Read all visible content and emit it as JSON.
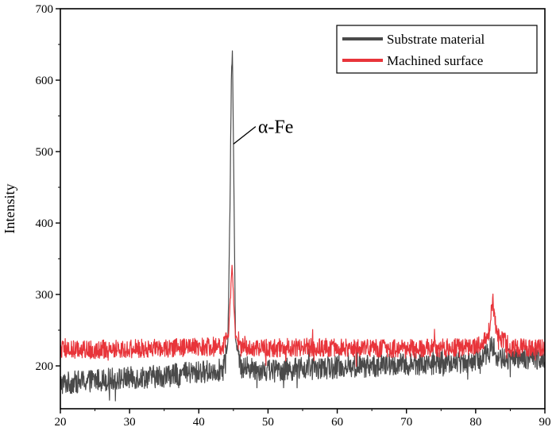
{
  "chart_data": {
    "type": "line",
    "title": "",
    "xlabel": "",
    "ylabel": "Intensity",
    "xlim": [
      20,
      90
    ],
    "ylim": [
      140,
      700
    ],
    "x_ticks": [
      20,
      30,
      40,
      50,
      60,
      70,
      80,
      90
    ],
    "y_ticks": [
      200,
      300,
      400,
      500,
      600,
      700
    ],
    "grid": false,
    "legend_position": "top-right",
    "series": [
      {
        "name": "Substrate material",
        "color": "#4a4a4a",
        "x": [
          20,
          25,
          30,
          35,
          40,
          43.5,
          44.2,
          44.5,
          44.7,
          44.85,
          45.0,
          45.3,
          46,
          50,
          55,
          60,
          65,
          70,
          75,
          80,
          82.0,
          82.5,
          83.0,
          85,
          90
        ],
        "y": [
          175,
          180,
          183,
          186,
          191,
          195,
          230,
          420,
          600,
          640,
          520,
          240,
          198,
          194,
          196,
          198,
          200,
          202,
          204,
          207,
          220,
          230,
          212,
          209,
          212
        ],
        "noise_amplitude": 16
      },
      {
        "name": "Machined surface",
        "color": "#e8343a",
        "x": [
          20,
          25,
          30,
          35,
          40,
          43.5,
          44.3,
          44.6,
          44.8,
          45.0,
          45.3,
          46,
          50,
          55,
          60,
          65,
          70,
          75,
          80,
          81.8,
          82.5,
          83.0,
          85,
          90
        ],
        "y": [
          222,
          223,
          224,
          225,
          226,
          227,
          245,
          300,
          345,
          300,
          240,
          226,
          225,
          226,
          226,
          225,
          224,
          225,
          226,
          240,
          290,
          245,
          226,
          225
        ],
        "noise_amplitude": 13
      }
    ],
    "annotations": [
      {
        "text": "α-Fe",
        "x": 45.0,
        "y": 515
      }
    ]
  }
}
